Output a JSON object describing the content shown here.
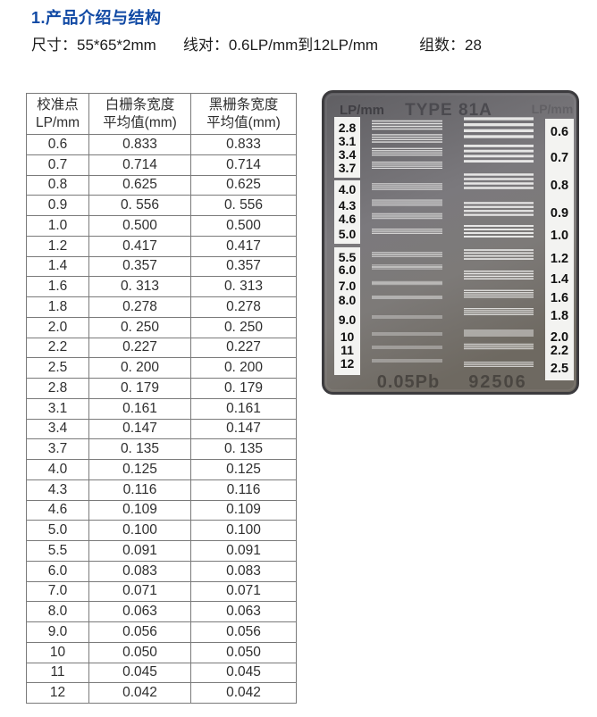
{
  "page": {
    "title": "1.产品介绍与结构",
    "specs": [
      "尺寸：55*65*2mm",
      "线对：0.6LP/mm到12LP/mm",
      "组数：28"
    ]
  },
  "table": {
    "headers": [
      "校准点\nLP/mm",
      "白栅条宽度\n平均值(mm)",
      "黑栅条宽度\n平均值(mm)"
    ],
    "rows": [
      [
        "0.6",
        "0.833",
        "0.833"
      ],
      [
        "0.7",
        "0.714",
        "0.714"
      ],
      [
        "0.8",
        "0.625",
        "0.625"
      ],
      [
        "0.9",
        "0. 556",
        "0. 556"
      ],
      [
        "1.0",
        "0.500",
        "0.500"
      ],
      [
        "1.2",
        "0.417",
        "0.417"
      ],
      [
        "1.4",
        "0.357",
        "0.357"
      ],
      [
        "1.6",
        "0. 313",
        "0. 313"
      ],
      [
        "1.8",
        "0.278",
        "0.278"
      ],
      [
        "2.0",
        "0. 250",
        "0. 250"
      ],
      [
        "2.2",
        "0.227",
        "0.227"
      ],
      [
        "2.5",
        "0. 200",
        "0. 200"
      ],
      [
        "2.8",
        "0. 179",
        "0. 179"
      ],
      [
        "3.1",
        "0.161",
        "0.161"
      ],
      [
        "3.4",
        "0.147",
        "0.147"
      ],
      [
        "3.7",
        "0. 135",
        "0. 135"
      ],
      [
        "4.0",
        "0.125",
        "0.125"
      ],
      [
        "4.3",
        "0.116",
        "0.116"
      ],
      [
        "4.6",
        "0.109",
        "0.109"
      ],
      [
        "5.0",
        "0.100",
        "0.100"
      ],
      [
        "5.5",
        "0.091",
        "0.091"
      ],
      [
        "6.0",
        "0.083",
        "0.083"
      ],
      [
        "7.0",
        "0.071",
        "0.071"
      ],
      [
        "8.0",
        "0.063",
        "0.063"
      ],
      [
        "9.0",
        "0.056",
        "0.056"
      ],
      [
        "10",
        "0.050",
        "0.050"
      ],
      [
        "11",
        "0.045",
        "0.045"
      ],
      [
        "12",
        "0.042",
        "0.042"
      ]
    ]
  },
  "target_plate": {
    "corner_label_left": "LP/mm",
    "title": "TYPE 81A",
    "corner_label_right": "LP/mm",
    "left_scale": [
      "2.8",
      "3.1",
      "3.4",
      "3.7",
      "4.0",
      "4.3",
      "4.6",
      "5.0",
      "5.5",
      "6.0",
      "7.0",
      "8.0",
      "9.0",
      "10",
      "11",
      "12"
    ],
    "right_scale": [
      "0.6",
      "0.7",
      "0.8",
      "0.9",
      "1.0",
      "1.2",
      "1.4",
      "1.6",
      "1.8",
      "2.0",
      "2.2",
      "2.5"
    ],
    "material_label": "0.05Pb",
    "serial_number": "92506"
  },
  "colors": {
    "title_blue": "#1049a4",
    "table_border": "#7a7a7a",
    "plate_dark": "#5f5e62",
    "plate_mid": "#7b797d",
    "plate_warm": "#6e6961",
    "plate_edge": "#3c3b3e",
    "strip_white": "#f3f3f1",
    "line_white": "#f0f0ef"
  }
}
